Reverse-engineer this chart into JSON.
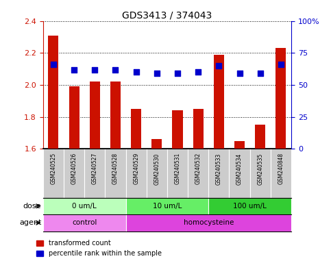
{
  "title": "GDS3413 / 374043",
  "samples": [
    "GSM240525",
    "GSM240526",
    "GSM240527",
    "GSM240528",
    "GSM240529",
    "GSM240530",
    "GSM240531",
    "GSM240532",
    "GSM240533",
    "GSM240534",
    "GSM240535",
    "GSM240848"
  ],
  "transformed_count": [
    2.31,
    1.99,
    2.02,
    2.02,
    1.85,
    1.66,
    1.84,
    1.85,
    2.19,
    1.65,
    1.75,
    2.23
  ],
  "percentile_rank": [
    66,
    62,
    62,
    62,
    60,
    59,
    59,
    60,
    65,
    59,
    59,
    66
  ],
  "ylim_left": [
    1.6,
    2.4
  ],
  "ylim_right": [
    0,
    100
  ],
  "yticks_left": [
    1.6,
    1.8,
    2.0,
    2.2,
    2.4
  ],
  "yticks_right": [
    0,
    25,
    50,
    75,
    100
  ],
  "bar_color": "#cc1100",
  "dot_color": "#0000cc",
  "dot_size": 30,
  "dose_groups": [
    {
      "label": "0 um/L",
      "start": 0,
      "end": 4,
      "color": "#bbffbb"
    },
    {
      "label": "10 um/L",
      "start": 4,
      "end": 8,
      "color": "#66ee66"
    },
    {
      "label": "100 um/L",
      "start": 8,
      "end": 12,
      "color": "#33cc33"
    }
  ],
  "agent_groups": [
    {
      "label": "control",
      "start": 0,
      "end": 4,
      "color": "#ee88ee"
    },
    {
      "label": "homocysteine",
      "start": 4,
      "end": 12,
      "color": "#dd44dd"
    }
  ],
  "dose_label": "dose",
  "agent_label": "agent",
  "legend_bar_label": "transformed count",
  "legend_dot_label": "percentile rank within the sample",
  "left_axis_color": "#cc1100",
  "right_axis_color": "#0000cc",
  "sample_box_color": "#cccccc",
  "bg_color": "#ffffff"
}
